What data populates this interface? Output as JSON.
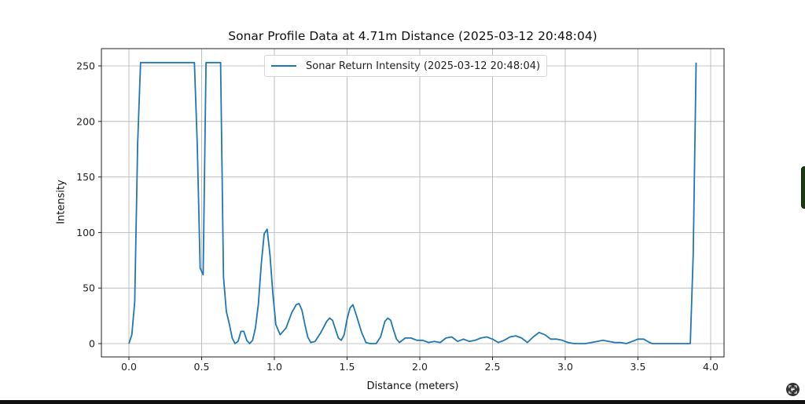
{
  "chart_data": {
    "type": "line",
    "title": "Sonar Profile Data at 4.71m Distance (2025-03-12 20:48:04)",
    "xlabel": "Distance (meters)",
    "ylabel": "Intensity",
    "xlim": [
      -0.19,
      4.09
    ],
    "ylim": [
      -12,
      265
    ],
    "xticks": [
      0.0,
      0.5,
      1.0,
      1.5,
      2.0,
      2.5,
      3.0,
      3.5,
      4.0
    ],
    "xtick_labels": [
      "0.0",
      "0.5",
      "1.0",
      "1.5",
      "2.0",
      "2.5",
      "3.0",
      "3.5",
      "4.0"
    ],
    "yticks": [
      0,
      50,
      100,
      150,
      200,
      250
    ],
    "ytick_labels": [
      "0",
      "50",
      "100",
      "150",
      "200",
      "250"
    ],
    "grid": true,
    "legend_position": "upper center",
    "series": [
      {
        "name": "Sonar Return Intensity (2025-03-12 20:48:04)",
        "color": "#1f77b4",
        "x": [
          0.0,
          0.02,
          0.04,
          0.06,
          0.08,
          0.1,
          0.2,
          0.3,
          0.4,
          0.45,
          0.47,
          0.49,
          0.51,
          0.53,
          0.55,
          0.6,
          0.63,
          0.65,
          0.67,
          0.69,
          0.71,
          0.73,
          0.75,
          0.77,
          0.79,
          0.81,
          0.83,
          0.85,
          0.87,
          0.89,
          0.91,
          0.93,
          0.95,
          0.97,
          0.99,
          1.01,
          1.04,
          1.08,
          1.12,
          1.15,
          1.17,
          1.19,
          1.21,
          1.23,
          1.25,
          1.28,
          1.32,
          1.36,
          1.38,
          1.4,
          1.42,
          1.44,
          1.46,
          1.48,
          1.5,
          1.52,
          1.54,
          1.57,
          1.6,
          1.63,
          1.66,
          1.7,
          1.73,
          1.76,
          1.78,
          1.8,
          1.82,
          1.84,
          1.86,
          1.9,
          1.94,
          1.98,
          2.02,
          2.06,
          2.1,
          2.14,
          2.18,
          2.22,
          2.26,
          2.3,
          2.34,
          2.38,
          2.42,
          2.46,
          2.5,
          2.54,
          2.58,
          2.62,
          2.66,
          2.7,
          2.74,
          2.78,
          2.82,
          2.86,
          2.9,
          2.94,
          2.98,
          3.02,
          3.06,
          3.1,
          3.14,
          3.18,
          3.22,
          3.26,
          3.3,
          3.34,
          3.38,
          3.42,
          3.46,
          3.5,
          3.54,
          3.58,
          3.6,
          3.7,
          3.8,
          3.86,
          3.88,
          3.9
        ],
        "y": [
          0,
          8,
          38,
          180,
          253,
          253,
          253,
          253,
          253,
          253,
          180,
          68,
          62,
          253,
          253,
          253,
          253,
          60,
          29,
          18,
          5,
          0,
          2,
          11,
          11,
          3,
          0,
          3,
          14,
          35,
          72,
          99,
          103,
          80,
          45,
          17,
          8,
          14,
          28,
          35,
          36,
          30,
          17,
          6,
          1,
          2,
          10,
          20,
          23,
          21,
          13,
          5,
          3,
          8,
          22,
          32,
          35,
          23,
          10,
          1,
          0,
          0,
          6,
          20,
          23,
          21,
          12,
          4,
          1,
          5,
          5,
          3,
          3,
          1,
          2,
          1,
          5,
          6,
          2,
          4,
          2,
          3,
          5,
          6,
          4,
          1,
          3,
          6,
          7,
          5,
          1,
          6,
          10,
          8,
          4,
          4,
          3,
          1,
          0,
          0,
          0,
          1,
          2,
          3,
          2,
          1,
          1,
          0,
          2,
          4,
          4,
          1,
          0,
          0,
          0,
          0,
          80,
          253
        ]
      }
    ]
  },
  "legend": {
    "label": "Sonar Return Intensity (2025-03-12 20:48:04)"
  },
  "overlay": {
    "side_tab_color": "#1b3a13",
    "fab_icon": "screen-capture-icon"
  }
}
